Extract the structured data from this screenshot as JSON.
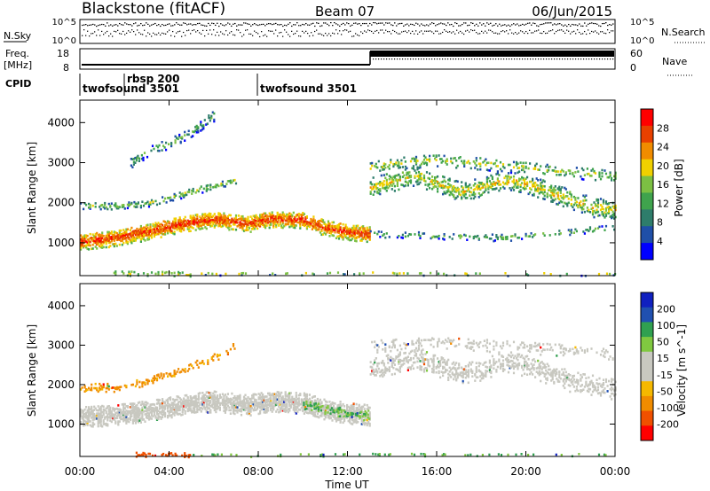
{
  "header": {
    "title": "Blackstone (fitACF)",
    "beam": "Beam 07",
    "date": "06/Jun/2015"
  },
  "panels": {
    "nsky_label": "N.Sky",
    "nsearch_label": "N.Search",
    "nsky_ticks": [
      "10^5",
      "10^0"
    ],
    "nsearch_ticks": [
      "10^5",
      "10^0"
    ],
    "freq_label_1": "Freq.",
    "freq_label_2": "[MHz]",
    "freq_ticks": [
      "18",
      "8"
    ],
    "nave_label": "Nave",
    "nave_ticks": [
      "60",
      "0"
    ],
    "cpid_label": "CPID",
    "cpid_entries": [
      "twofsound 3501",
      "rbsp 200",
      "twofsound 3501"
    ]
  },
  "colors": {
    "scatter_power": [
      "#0000ff",
      "#1f4fa8",
      "#2e7d6b",
      "#3fa34d",
      "#7cc043",
      "#f0d000",
      "#f08c00",
      "#e84000",
      "#ff0000"
    ],
    "velocity": [
      "#ff0000",
      "#f05000",
      "#f08c00",
      "#f5b800",
      "#c8c8c0",
      "#c8c8c0",
      "#80c840",
      "#30a050",
      "#2050b0",
      "#1020c0"
    ]
  },
  "chart_data": [
    {
      "type": "heatmap",
      "name": "Power",
      "xlabel": "",
      "ylabel": "Slant Range [km]",
      "x_ticks": [
        "00:00",
        "04:00",
        "08:00",
        "12:00",
        "16:00",
        "20:00",
        "00:00"
      ],
      "y_ticks": [
        "1000",
        "2000",
        "3000",
        "4000"
      ],
      "xlim": [
        0,
        24
      ],
      "ylim": [
        180,
        4560
      ],
      "colorbar": {
        "label": "Power [dB]",
        "ticks": [
          "28",
          "24",
          "20",
          "16",
          "12",
          "8",
          "4"
        ],
        "range": [
          0,
          32
        ]
      },
      "bands": [
        {
          "t": [
            0,
            1.5,
            3,
            4.5,
            6,
            7.5,
            8.5,
            10,
            11,
            12,
            13
          ],
          "r": [
            1050,
            1150,
            1300,
            1500,
            1620,
            1500,
            1620,
            1600,
            1400,
            1300,
            1250
          ],
          "width": 400,
          "density": 0.95,
          "level": 22
        },
        {
          "t": [
            0,
            1.5,
            3,
            4,
            5,
            6,
            7
          ],
          "r": [
            1950,
            1950,
            2000,
            2150,
            2300,
            2450,
            2600
          ],
          "width": 150,
          "density": 0.55,
          "level": 12
        },
        {
          "t": [
            2.2,
            3,
            4,
            5,
            6
          ],
          "r": [
            3000,
            3300,
            3500,
            3800,
            4200
          ],
          "width": 250,
          "density": 0.35,
          "level": 8
        },
        {
          "t": [
            13,
            14,
            15,
            16,
            17,
            18,
            19,
            20,
            21,
            22,
            23,
            24
          ],
          "r": [
            2400,
            2550,
            2700,
            2500,
            2300,
            2400,
            2600,
            2500,
            2300,
            2100,
            1900,
            1850
          ],
          "width": 450,
          "density": 0.5,
          "level": 14
        },
        {
          "t": [
            13,
            14,
            16,
            18,
            20,
            22,
            24
          ],
          "r": [
            2900,
            3000,
            3100,
            3000,
            2900,
            2800,
            2700
          ],
          "width": 300,
          "density": 0.3,
          "level": 12
        },
        {
          "t": [
            13,
            16,
            19,
            22,
            24
          ],
          "r": [
            1250,
            1200,
            1150,
            1300,
            1400
          ],
          "width": 150,
          "density": 0.25,
          "level": 10
        },
        {
          "t": [
            1.5,
            2.5,
            3.5,
            4.5,
            5
          ],
          "r": [
            280,
            270,
            260,
            250,
            250
          ],
          "width": 120,
          "density": 0.45,
          "level": 14
        },
        {
          "t": [
            5,
            8,
            12,
            16,
            20,
            24
          ],
          "r": [
            260,
            260,
            270,
            260,
            250,
            250
          ],
          "width": 80,
          "density": 0.15,
          "level": 12
        }
      ]
    },
    {
      "type": "heatmap",
      "name": "Velocity",
      "xlabel": "Time UT",
      "ylabel": "Slant Range [km]",
      "x_ticks": [
        "00:00",
        "04:00",
        "08:00",
        "12:00",
        "16:00",
        "20:00",
        "00:00"
      ],
      "y_ticks": [
        "1000",
        "2000",
        "3000",
        "4000"
      ],
      "xlim": [
        0,
        24
      ],
      "ylim": [
        180,
        4560
      ],
      "colorbar": {
        "label": "Velocity [m s^-1]",
        "ticks": [
          "200",
          "100",
          "50",
          "15",
          "-15",
          "-50",
          "-100",
          "-200"
        ],
        "range": [
          -250,
          250
        ]
      },
      "bands": [
        {
          "t": [
            0,
            1.5,
            3,
            4.5,
            6,
            7.5,
            8.5,
            10,
            11,
            12,
            13
          ],
          "r": [
            1200,
            1250,
            1350,
            1500,
            1600,
            1500,
            1600,
            1550,
            1400,
            1300,
            1250
          ],
          "width": 500,
          "density": 0.9,
          "level": 0
        },
        {
          "t": [
            0,
            1.5,
            3,
            4,
            5,
            6,
            7
          ],
          "r": [
            1950,
            1950,
            2100,
            2300,
            2500,
            2700,
            3000
          ],
          "width": 180,
          "density": 0.4,
          "level": -60
        },
        {
          "t": [
            13,
            14,
            15,
            16,
            17,
            18,
            19,
            20,
            21,
            22,
            23,
            24
          ],
          "r": [
            2400,
            2550,
            2700,
            2500,
            2300,
            2400,
            2600,
            2500,
            2300,
            2100,
            2000,
            1900
          ],
          "width": 500,
          "density": 0.45,
          "level": 0
        },
        {
          "t": [
            13,
            16,
            19,
            22,
            24
          ],
          "r": [
            3000,
            3100,
            3000,
            2900,
            2800
          ],
          "width": 300,
          "density": 0.25,
          "level": 0
        },
        {
          "t": [
            2.5,
            3.5,
            4.5,
            5
          ],
          "r": [
            260,
            250,
            250,
            250
          ],
          "width": 120,
          "density": 0.55,
          "level": -150
        },
        {
          "t": [
            10,
            11,
            12,
            13
          ],
          "r": [
            1500,
            1400,
            1300,
            1250
          ],
          "width": 250,
          "density": 0.5,
          "level": 50
        },
        {
          "t": [
            5,
            9,
            13,
            17,
            21,
            24
          ],
          "r": [
            250,
            250,
            260,
            250,
            250,
            250
          ],
          "width": 80,
          "density": 0.15,
          "level": 50
        }
      ]
    }
  ]
}
